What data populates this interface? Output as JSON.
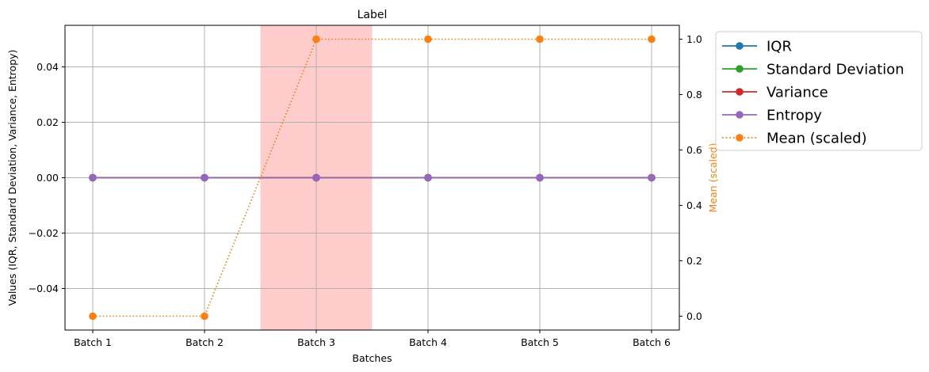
{
  "chart_data": {
    "type": "line",
    "title": "Label",
    "xlabel": "Batches",
    "ylabel": "Values (IQR, Standard Deviation, Variance, Entropy)",
    "ylabel_right": "Mean (scaled)",
    "categories": [
      "Batch 1",
      "Batch 2",
      "Batch 3",
      "Batch 4",
      "Batch 5",
      "Batch 6"
    ],
    "ylim": [
      -0.055,
      0.055
    ],
    "yticks": [
      "−0.04",
      "−0.02",
      "0.00",
      "0.02",
      "0.04"
    ],
    "ytick_values": [
      -0.04,
      -0.02,
      0.0,
      0.02,
      0.04
    ],
    "ylim_right": [
      -0.05,
      1.05
    ],
    "yticks_right": [
      "0.0",
      "0.2",
      "0.4",
      "0.6",
      "0.8",
      "1.0"
    ],
    "ytick_values_right": [
      0.0,
      0.2,
      0.4,
      0.6,
      0.8,
      1.0
    ],
    "grid": true,
    "highlight_span": [
      1.5,
      2.5
    ],
    "highlight_color": "#ffcccc",
    "legend_position": "outside-right",
    "series": [
      {
        "name": "IQR",
        "values": [
          0,
          0,
          0,
          0,
          0,
          0
        ],
        "color": "#1f77b4",
        "style": "solid",
        "axis": "left"
      },
      {
        "name": "Standard Deviation",
        "values": [
          0,
          0,
          0,
          0,
          0,
          0
        ],
        "color": "#2ca02c",
        "style": "solid",
        "axis": "left"
      },
      {
        "name": "Variance",
        "values": [
          0,
          0,
          0,
          0,
          0,
          0
        ],
        "color": "#d62728",
        "style": "solid",
        "axis": "left"
      },
      {
        "name": "Entropy",
        "values": [
          0,
          0,
          0,
          0,
          0,
          0
        ],
        "color": "#9467bd",
        "style": "solid",
        "axis": "left"
      },
      {
        "name": "Mean (scaled)",
        "values": [
          0,
          0,
          1,
          1,
          1,
          1
        ],
        "color": "#ff7f0e",
        "style": "dotted",
        "axis": "right"
      }
    ]
  }
}
